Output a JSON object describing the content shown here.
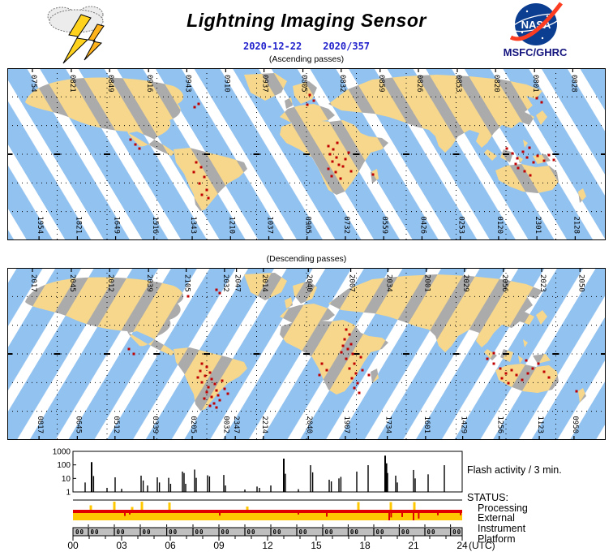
{
  "header": {
    "title": "Lightning Imaging Sensor",
    "date_iso": "2020-12-22",
    "date_doy": "2020/357",
    "agency": "MSFC/GHRC",
    "nasa_wordmark": "NASA"
  },
  "colors": {
    "date_text": "#2222cc",
    "agency_text": "#14147e",
    "swath_ocean": "#92c2f0",
    "ocean": "#ffffff",
    "swath_land": "#f6d78c",
    "land": "#ababab",
    "flash": "#c00000",
    "status_red": "#e00000",
    "status_yellow": "#ffc800",
    "axis_band": "#bfbfbf",
    "nasa_blue": "#0b3d91",
    "nasa_red": "#fc3d21",
    "bolt_yellow": "#ffd21e"
  },
  "maps": {
    "ascending": {
      "caption": "(Ascending passes)",
      "top_labels": [
        "0754",
        "0821",
        "0849",
        "0916",
        "0943",
        "0910",
        "0937",
        "0805",
        "0832",
        "0859",
        "0826",
        "0853",
        "0820",
        "0801",
        "0828"
      ],
      "top_positions": [
        0.042,
        0.107,
        0.171,
        0.236,
        0.3,
        0.365,
        0.429,
        0.494,
        0.558,
        0.623,
        0.687,
        0.752,
        0.816,
        0.881,
        0.945
      ],
      "bottom_labels": [
        "1954",
        "1821",
        "1649",
        "1516",
        "1343",
        "1210",
        "1037",
        "0905",
        "0732",
        "0559",
        "0426",
        "0253",
        "0120",
        "2301",
        "2128"
      ],
      "bottom_positions": [
        0.053,
        0.117,
        0.181,
        0.245,
        0.309,
        0.373,
        0.437,
        0.501,
        0.565,
        0.629,
        0.693,
        0.757,
        0.821,
        0.885,
        0.949
      ],
      "flash_dots": [
        [
          236,
          44
        ],
        [
          231,
          48
        ],
        [
          373,
          33
        ],
        [
          378,
          40
        ],
        [
          370,
          45
        ],
        [
          152,
          88
        ],
        [
          158,
          94
        ],
        [
          163,
          99
        ],
        [
          233,
          116
        ],
        [
          239,
          122
        ],
        [
          230,
          128
        ],
        [
          243,
          134
        ],
        [
          237,
          142
        ],
        [
          246,
          150
        ],
        [
          240,
          156
        ],
        [
          248,
          160
        ],
        [
          396,
          96
        ],
        [
          402,
          100
        ],
        [
          398,
          106
        ],
        [
          406,
          110
        ],
        [
          401,
          115
        ],
        [
          409,
          119
        ],
        [
          396,
          124
        ],
        [
          405,
          128
        ],
        [
          400,
          133
        ],
        [
          411,
          136
        ],
        [
          417,
          112
        ],
        [
          414,
          121
        ],
        [
          421,
          104
        ],
        [
          424,
          127
        ],
        [
          407,
          92
        ],
        [
          451,
          131
        ],
        [
          653,
          37
        ],
        [
          659,
          42
        ],
        [
          616,
          99
        ],
        [
          623,
          105
        ],
        [
          629,
          111
        ],
        [
          636,
          103
        ],
        [
          641,
          110
        ],
        [
          649,
          116
        ],
        [
          627,
          118
        ],
        [
          644,
          98
        ],
        [
          654,
          108
        ],
        [
          662,
          114
        ],
        [
          668,
          107
        ],
        [
          674,
          113
        ],
        [
          630,
          123
        ],
        [
          638,
          127
        ],
        [
          645,
          132
        ]
      ]
    },
    "descending": {
      "caption": "(Descending passes)",
      "top_labels": [
        "2017",
        "2045",
        "2012",
        "2039",
        "2105",
        "2032",
        "2047",
        "2014",
        "2040",
        "2007",
        "2034",
        "2001",
        "2029",
        "2056",
        "2023",
        "2050"
      ],
      "top_positions": [
        0.042,
        0.107,
        0.171,
        0.236,
        0.299,
        0.363,
        0.383,
        0.428,
        0.503,
        0.574,
        0.636,
        0.7,
        0.764,
        0.829,
        0.893,
        0.957
      ],
      "bottom_labels": [
        "0817",
        "0645",
        "0512",
        "0339",
        "0205",
        "0032",
        "2347",
        "2214",
        "2040",
        "1907",
        "1734",
        "1601",
        "1429",
        "1256",
        "1123",
        "0950"
      ],
      "bottom_positions": [
        0.053,
        0.117,
        0.18,
        0.245,
        0.309,
        0.364,
        0.381,
        0.428,
        0.503,
        0.565,
        0.635,
        0.699,
        0.761,
        0.822,
        0.889,
        0.947
      ],
      "flash_dots": [
        [
          240,
          118
        ],
        [
          246,
          122
        ],
        [
          238,
          127
        ],
        [
          250,
          129
        ],
        [
          244,
          133
        ],
        [
          252,
          137
        ],
        [
          240,
          141
        ],
        [
          256,
          143
        ],
        [
          248,
          147
        ],
        [
          258,
          151
        ],
        [
          246,
          153
        ],
        [
          260,
          157
        ],
        [
          252,
          159
        ],
        [
          262,
          163
        ],
        [
          255,
          167
        ],
        [
          268,
          149
        ],
        [
          272,
          155
        ],
        [
          265,
          139
        ],
        [
          235,
          135
        ],
        [
          243,
          161
        ],
        [
          250,
          170
        ],
        [
          258,
          172
        ],
        [
          418,
          76
        ],
        [
          422,
          82
        ],
        [
          416,
          88
        ],
        [
          424,
          94
        ],
        [
          420,
          100
        ],
        [
          426,
          106
        ],
        [
          418,
          112
        ],
        [
          428,
          118
        ],
        [
          422,
          124
        ],
        [
          430,
          130
        ],
        [
          425,
          136
        ],
        [
          432,
          142
        ],
        [
          428,
          148
        ],
        [
          434,
          154
        ],
        [
          414,
          96
        ],
        [
          436,
          110
        ],
        [
          412,
          104
        ],
        [
          438,
          126
        ],
        [
          388,
          118
        ],
        [
          394,
          126
        ],
        [
          385,
          132
        ],
        [
          600,
          118
        ],
        [
          608,
          124
        ],
        [
          615,
          130
        ],
        [
          622,
          126
        ],
        [
          628,
          132
        ],
        [
          635,
          138
        ],
        [
          642,
          130
        ],
        [
          610,
          136
        ],
        [
          618,
          142
        ],
        [
          648,
          124
        ],
        [
          655,
          118
        ],
        [
          640,
          114
        ],
        [
          662,
          128
        ],
        [
          600,
          105
        ],
        [
          592,
          112
        ],
        [
          668,
          135
        ],
        [
          223,
          35
        ],
        [
          258,
          27
        ],
        [
          262,
          31
        ],
        [
          150,
          100
        ],
        [
          156,
          106
        ],
        [
          446,
          132
        ],
        [
          702,
          152
        ]
      ]
    }
  },
  "chart_data": {
    "type": "bar",
    "title": "Flash activity / 3 min.",
    "status_heading": "STATUS:",
    "status_rows": [
      "Processing",
      "External",
      "Instrument",
      "Platform"
    ],
    "x_axis": {
      "range_hours": [
        0,
        24
      ],
      "tick_labels": [
        "00",
        "03",
        "06",
        "09",
        "12",
        "15",
        "18",
        "21",
        "24"
      ],
      "tick_step_hours": 3,
      "minor_tick_hours": 1,
      "unit": "(UTC)"
    },
    "y_axis": {
      "scale": "log",
      "tick_labels": [
        "1000",
        "100",
        "10",
        "1"
      ],
      "range": [
        1,
        1000
      ]
    },
    "flash_spikes": [
      [
        0.75,
        5
      ],
      [
        1.15,
        160
      ],
      [
        1.27,
        15
      ],
      [
        2.1,
        2
      ],
      [
        2.6,
        12
      ],
      [
        3.0,
        1.7
      ],
      [
        4.2,
        16
      ],
      [
        4.33,
        7
      ],
      [
        4.6,
        3
      ],
      [
        5.2,
        12
      ],
      [
        5.33,
        5
      ],
      [
        5.9,
        11
      ],
      [
        6.02,
        4
      ],
      [
        6.75,
        32
      ],
      [
        6.85,
        25
      ],
      [
        6.95,
        4
      ],
      [
        7.5,
        45
      ],
      [
        7.6,
        11
      ],
      [
        8.3,
        17
      ],
      [
        8.42,
        14
      ],
      [
        9.3,
        18
      ],
      [
        9.4,
        3
      ],
      [
        10.6,
        1.5
      ],
      [
        11.35,
        2.5
      ],
      [
        11.5,
        2
      ],
      [
        12.2,
        3
      ],
      [
        13.0,
        290
      ],
      [
        13.1,
        22
      ],
      [
        13.9,
        1.6
      ],
      [
        14.65,
        95
      ],
      [
        14.78,
        28
      ],
      [
        15.8,
        8
      ],
      [
        15.93,
        6
      ],
      [
        16.4,
        10
      ],
      [
        16.52,
        13
      ],
      [
        17.5,
        32
      ],
      [
        18.2,
        95
      ],
      [
        19.25,
        480
      ],
      [
        19.33,
        130
      ],
      [
        19.4,
        25
      ],
      [
        19.9,
        16
      ],
      [
        20.0,
        5
      ],
      [
        21.0,
        42
      ],
      [
        21.1,
        10
      ],
      [
        21.9,
        20
      ],
      [
        22.9,
        95
      ]
    ],
    "external_events": [
      [
        1.1,
        0.55
      ],
      [
        2.55,
        1.0
      ],
      [
        3.65,
        0.35
      ],
      [
        4.25,
        1.0
      ],
      [
        5.95,
        0.9
      ],
      [
        10.75,
        0.4
      ],
      [
        17.6,
        0.95
      ],
      [
        19.6,
        0.95
      ],
      [
        21.05,
        0.95
      ]
    ],
    "instrument_events": [
      [
        3.2,
        0.4
      ],
      [
        3.5,
        0.2
      ],
      [
        9.05,
        0.35
      ],
      [
        13.9,
        0.2
      ],
      [
        15.65,
        0.5
      ],
      [
        19.5,
        1.0
      ],
      [
        19.62,
        0.6
      ],
      [
        20.3,
        0.55
      ],
      [
        21.0,
        1.0
      ],
      [
        21.32,
        0.75
      ],
      [
        22.5,
        0.3
      ],
      [
        23.9,
        0.3
      ]
    ],
    "orbit_marker_label": "00",
    "orbit_dividers_h": [
      0.95,
      2.55,
      4.15,
      5.78,
      7.4,
      9.0,
      10.6,
      12.2,
      13.8,
      15.4,
      16.97,
      18.55,
      20.12,
      21.7,
      23.28
    ]
  }
}
